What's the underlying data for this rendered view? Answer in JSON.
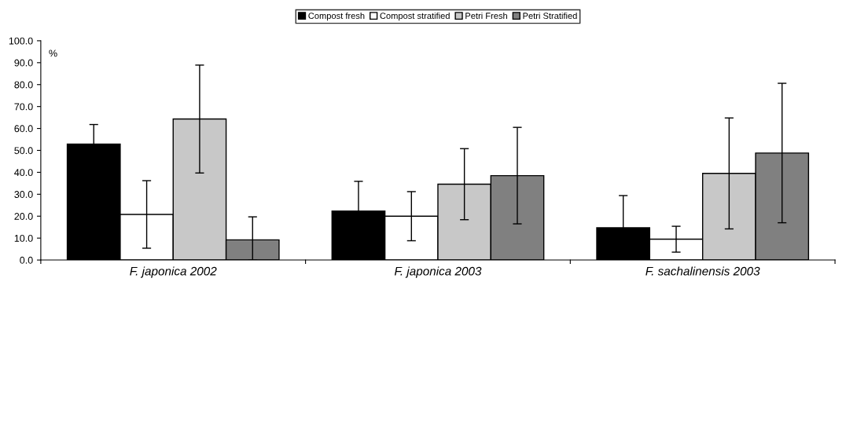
{
  "chart_data": {
    "type": "bar",
    "ylabel": "%",
    "categories": [
      "F. japonica 2002",
      "F. japonica 2003",
      "F. sachalinensis 2003"
    ],
    "series": [
      {
        "name": "Compost fresh",
        "color": "#000000",
        "values": [
          52.9,
          22.3,
          14.7
        ],
        "errors": [
          8.9,
          13.6,
          14.7
        ]
      },
      {
        "name": "Compost stratified",
        "color": "#ffffff",
        "values": [
          20.8,
          20.0,
          9.5
        ],
        "errors": [
          15.4,
          11.2,
          5.9
        ]
      },
      {
        "name": "Petri Fresh",
        "color": "#c8c8c8",
        "values": [
          64.3,
          34.6,
          39.5
        ],
        "errors": [
          24.6,
          16.2,
          25.3
        ]
      },
      {
        "name": "Petri Stratified",
        "color": "#808080",
        "values": [
          9.2,
          38.5,
          48.8
        ],
        "errors": [
          [
            0,
            19.7
          ],
          22.0,
          31.8
        ]
      }
    ],
    "ylim": [
      0,
      100
    ],
    "yticks": [
      {
        "value": 0,
        "label": "0.0"
      },
      {
        "value": 10,
        "label": "10.0"
      },
      {
        "value": 20,
        "label": "20.0"
      },
      {
        "value": 30,
        "label": "30.0"
      },
      {
        "value": 40,
        "label": "40.0"
      },
      {
        "value": 50,
        "label": "50.0"
      },
      {
        "value": 60,
        "label": "60.0"
      },
      {
        "value": 70,
        "label": "70.0"
      },
      {
        "value": 80,
        "label": "80.0"
      },
      {
        "value": 90,
        "label": "90.0"
      },
      {
        "value": 100,
        "label": "100.0"
      }
    ],
    "grid": false,
    "legend": "top"
  }
}
